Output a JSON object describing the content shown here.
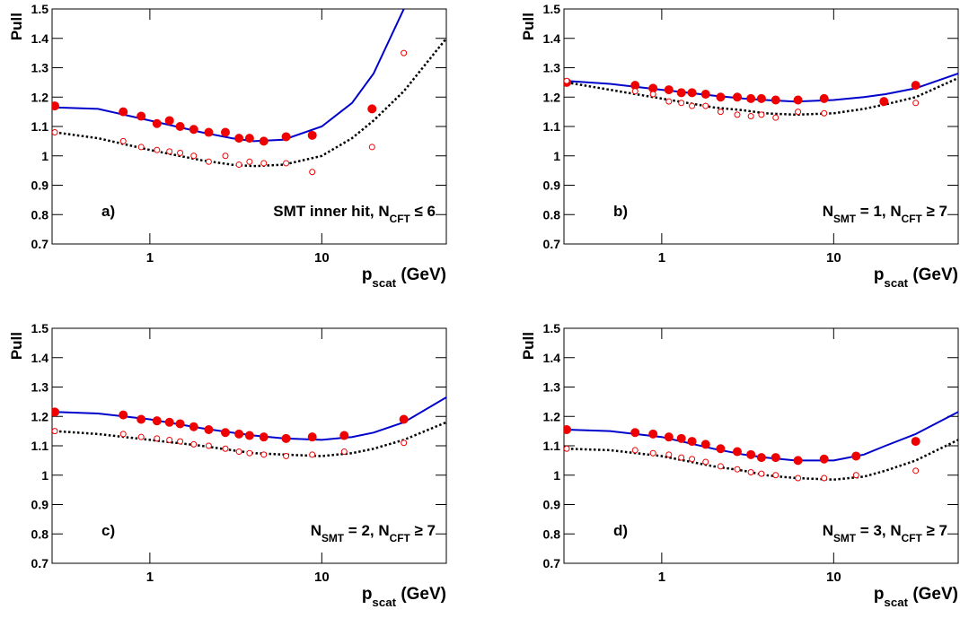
{
  "chart_data": [
    {
      "type": "scatter",
      "panel_label": "a)",
      "annotation": [
        {
          "text": "SMT inner hit, N"
        },
        {
          "text": "CFT",
          "sub": true
        },
        {
          "text": " ≤ 6"
        }
      ],
      "ylabel": "Pull",
      "xlabel": [
        {
          "text": "p"
        },
        {
          "text": "scat",
          "sub": true
        },
        {
          "text": " (GeV)"
        }
      ],
      "log_x": true,
      "xlim": [
        0.27,
        53
      ],
      "xticks": [
        1,
        10
      ],
      "ylim": [
        0.7,
        1.5
      ],
      "yticks": [
        0.7,
        0.8,
        0.9,
        1,
        1.1,
        1.2,
        1.3,
        1.4,
        1.5
      ],
      "x": [
        0.28,
        0.7,
        0.89,
        1.1,
        1.3,
        1.5,
        1.8,
        2.2,
        2.75,
        3.3,
        3.8,
        4.6,
        6.2,
        8.8,
        19.6,
        30
      ],
      "series": [
        {
          "color": "#ee0000",
          "marker": "filled",
          "values": [
            1.17,
            1.15,
            1.135,
            1.11,
            1.12,
            1.1,
            1.09,
            1.08,
            1.08,
            1.06,
            1.06,
            1.05,
            1.065,
            1.07,
            1.16,
            null
          ]
        },
        {
          "color": "#ee0000",
          "marker": "open",
          "values": [
            1.08,
            1.05,
            1.03,
            1.02,
            1.015,
            1.01,
            1.0,
            0.98,
            1.0,
            0.97,
            0.98,
            0.975,
            0.975,
            0.945,
            1.03,
            1.35
          ]
        }
      ],
      "curve_x": [
        0.28,
        0.5,
        1,
        2,
        3,
        4,
        6,
        10,
        15,
        20,
        30,
        53
      ],
      "curves": [
        {
          "color": "#0000cc",
          "style": "solid",
          "values": [
            1.165,
            1.16,
            1.12,
            1.08,
            1.06,
            1.05,
            1.055,
            1.1,
            1.18,
            1.28,
            1.5,
            null
          ]
        },
        {
          "color": "#000000",
          "style": "dotted",
          "values": [
            1.08,
            1.06,
            1.02,
            0.985,
            0.97,
            0.965,
            0.97,
            1.0,
            1.06,
            1.12,
            1.22,
            1.4
          ]
        }
      ]
    },
    {
      "type": "scatter",
      "panel_label": "b)",
      "annotation": [
        {
          "text": "N"
        },
        {
          "text": "SMT",
          "sub": true
        },
        {
          "text": " = 1, N"
        },
        {
          "text": "CFT",
          "sub": true
        },
        {
          "text": " ≥ 7"
        }
      ],
      "ylabel": "Pull",
      "xlabel": [
        {
          "text": "p"
        },
        {
          "text": "scat",
          "sub": true
        },
        {
          "text": " (GeV)"
        }
      ],
      "log_x": true,
      "xlim": [
        0.27,
        53
      ],
      "xticks": [
        1,
        10
      ],
      "ylim": [
        0.7,
        1.5
      ],
      "yticks": [
        0.7,
        0.8,
        0.9,
        1,
        1.1,
        1.2,
        1.3,
        1.4,
        1.5
      ],
      "x": [
        0.28,
        0.7,
        0.89,
        1.1,
        1.3,
        1.5,
        1.8,
        2.2,
        2.75,
        3.3,
        3.8,
        4.6,
        6.2,
        8.8,
        19.6,
        30
      ],
      "series": [
        {
          "color": "#ee0000",
          "marker": "filled",
          "values": [
            1.25,
            1.24,
            1.23,
            1.225,
            1.215,
            1.215,
            1.21,
            1.2,
            1.2,
            1.195,
            1.195,
            1.19,
            1.19,
            1.195,
            1.185,
            1.24
          ]
        },
        {
          "color": "#ee0000",
          "marker": "open",
          "values": [
            1.255,
            1.22,
            1.21,
            1.185,
            1.18,
            1.17,
            1.17,
            1.15,
            1.14,
            1.135,
            1.14,
            1.13,
            1.15,
            1.145,
            null,
            1.18
          ]
        }
      ],
      "curve_x": [
        0.28,
        0.5,
        1,
        2,
        3,
        4,
        6,
        10,
        15,
        20,
        30,
        53
      ],
      "curves": [
        {
          "color": "#0000cc",
          "style": "solid",
          "values": [
            1.255,
            1.245,
            1.225,
            1.205,
            1.195,
            1.19,
            1.185,
            1.19,
            1.2,
            1.21,
            1.23,
            1.28
          ]
        },
        {
          "color": "#000000",
          "style": "dotted",
          "values": [
            1.25,
            1.225,
            1.195,
            1.165,
            1.155,
            1.145,
            1.14,
            1.145,
            1.16,
            1.175,
            1.2,
            1.265
          ]
        }
      ]
    },
    {
      "type": "scatter",
      "panel_label": "c)",
      "annotation": [
        {
          "text": "N"
        },
        {
          "text": "SMT",
          "sub": true
        },
        {
          "text": " = 2, N"
        },
        {
          "text": "CFT",
          "sub": true
        },
        {
          "text": " ≥ 7"
        }
      ],
      "ylabel": "Pull",
      "xlabel": [
        {
          "text": "p"
        },
        {
          "text": "scat",
          "sub": true
        },
        {
          "text": " (GeV)"
        }
      ],
      "log_x": true,
      "xlim": [
        0.27,
        53
      ],
      "xticks": [
        1,
        10
      ],
      "ylim": [
        0.7,
        1.5
      ],
      "yticks": [
        0.7,
        0.8,
        0.9,
        1,
        1.1,
        1.2,
        1.3,
        1.4,
        1.5
      ],
      "x": [
        0.28,
        0.7,
        0.89,
        1.1,
        1.3,
        1.5,
        1.8,
        2.2,
        2.75,
        3.3,
        3.8,
        4.6,
        6.2,
        8.8,
        13.5,
        30
      ],
      "series": [
        {
          "color": "#ee0000",
          "marker": "filled",
          "values": [
            1.215,
            1.205,
            1.19,
            1.185,
            1.18,
            1.175,
            1.165,
            1.155,
            1.145,
            1.14,
            1.135,
            1.13,
            1.125,
            1.13,
            1.135,
            1.19
          ]
        },
        {
          "color": "#ee0000",
          "marker": "open",
          "values": [
            1.15,
            1.14,
            1.13,
            1.125,
            1.12,
            1.115,
            1.105,
            1.1,
            1.09,
            1.08,
            1.075,
            1.07,
            1.065,
            1.07,
            1.08,
            1.11
          ]
        }
      ],
      "curve_x": [
        0.28,
        0.5,
        1,
        2,
        3,
        4,
        6,
        10,
        15,
        20,
        30,
        53
      ],
      "curves": [
        {
          "color": "#0000cc",
          "style": "solid",
          "values": [
            1.215,
            1.21,
            1.19,
            1.16,
            1.145,
            1.135,
            1.125,
            1.12,
            1.13,
            1.145,
            1.18,
            1.265
          ]
        },
        {
          "color": "#000000",
          "style": "dotted",
          "values": [
            1.15,
            1.14,
            1.12,
            1.1,
            1.085,
            1.075,
            1.07,
            1.065,
            1.075,
            1.09,
            1.12,
            1.18
          ]
        }
      ]
    },
    {
      "type": "scatter",
      "panel_label": "d)",
      "annotation": [
        {
          "text": "N"
        },
        {
          "text": "SMT",
          "sub": true
        },
        {
          "text": " = 3, N"
        },
        {
          "text": "CFT",
          "sub": true
        },
        {
          "text": " ≥ 7"
        }
      ],
      "ylabel": "Pull",
      "xlabel": [
        {
          "text": "p"
        },
        {
          "text": "scat",
          "sub": true
        },
        {
          "text": " (GeV)"
        }
      ],
      "log_x": true,
      "xlim": [
        0.27,
        53
      ],
      "xticks": [
        1,
        10
      ],
      "ylim": [
        0.7,
        1.5
      ],
      "yticks": [
        0.7,
        0.8,
        0.9,
        1,
        1.1,
        1.2,
        1.3,
        1.4,
        1.5
      ],
      "x": [
        0.28,
        0.7,
        0.89,
        1.1,
        1.3,
        1.5,
        1.8,
        2.2,
        2.75,
        3.3,
        3.8,
        4.6,
        6.2,
        8.8,
        13.5,
        30
      ],
      "series": [
        {
          "color": "#ee0000",
          "marker": "filled",
          "values": [
            1.155,
            1.145,
            1.14,
            1.13,
            1.125,
            1.115,
            1.105,
            1.09,
            1.08,
            1.07,
            1.06,
            1.06,
            1.05,
            1.055,
            1.065,
            1.115
          ]
        },
        {
          "color": "#ee0000",
          "marker": "open",
          "values": [
            1.09,
            1.085,
            1.075,
            1.07,
            1.06,
            1.055,
            1.045,
            1.03,
            1.02,
            1.01,
            1.005,
            1.0,
            0.99,
            0.99,
            1.0,
            1.015
          ]
        }
      ],
      "curve_x": [
        0.28,
        0.5,
        1,
        2,
        3,
        4,
        6,
        10,
        15,
        20,
        30,
        53
      ],
      "curves": [
        {
          "color": "#0000cc",
          "style": "solid",
          "values": [
            1.155,
            1.15,
            1.13,
            1.09,
            1.07,
            1.06,
            1.05,
            1.05,
            1.07,
            1.1,
            1.14,
            1.215
          ]
        },
        {
          "color": "#000000",
          "style": "dotted",
          "values": [
            1.09,
            1.085,
            1.065,
            1.03,
            1.015,
            1.0,
            0.99,
            0.985,
            0.995,
            1.015,
            1.05,
            1.12
          ]
        }
      ]
    }
  ]
}
